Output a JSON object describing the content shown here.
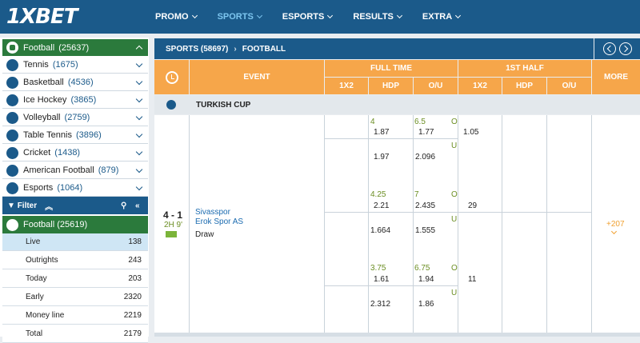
{
  "brand": {
    "logo": "1XBET"
  },
  "nav": [
    {
      "label": "PROMO",
      "active": false
    },
    {
      "label": "SPORTS",
      "active": true
    },
    {
      "label": "ESPORTS",
      "active": false
    },
    {
      "label": "RESULTS",
      "active": false
    },
    {
      "label": "EXTRA",
      "active": false
    }
  ],
  "sidebar": {
    "sports": [
      {
        "name": "Football",
        "count": "(25637)",
        "icon": "football-icon"
      },
      {
        "name": "Tennis",
        "count": "(1675)",
        "icon": "tennis-icon"
      },
      {
        "name": "Basketball",
        "count": "(4536)",
        "icon": "basketball-icon"
      },
      {
        "name": "Ice Hockey",
        "count": "(3865)",
        "icon": "ice-hockey-icon"
      },
      {
        "name": "Volleyball",
        "count": "(2759)",
        "icon": "volleyball-icon"
      },
      {
        "name": "Table Tennis",
        "count": "(3896)",
        "icon": "table-tennis-icon"
      },
      {
        "name": "Cricket",
        "count": "(1438)",
        "icon": "cricket-icon"
      },
      {
        "name": "American Football",
        "count": "(879)",
        "icon": "american-football-icon"
      },
      {
        "name": "Esports",
        "count": "(1064)",
        "icon": "esports-icon"
      }
    ],
    "filter_label": "Filter",
    "section": {
      "name": "Football",
      "count": "(25619)"
    },
    "sub_items": [
      {
        "label": "Live",
        "count": "138"
      },
      {
        "label": "Outrights",
        "count": "243"
      },
      {
        "label": "Today",
        "count": "203"
      },
      {
        "label": "Early",
        "count": "2320"
      },
      {
        "label": "Money line",
        "count": "2219"
      },
      {
        "label": "Total",
        "count": "2179"
      }
    ]
  },
  "main": {
    "breadcrumb": {
      "sports": "SPORTS (58697)",
      "current": "FOOTBALL"
    },
    "table_head": {
      "event": "EVENT",
      "full_time": "FULL TIME",
      "first_half": "1ST HALF",
      "more": "MORE",
      "cols": [
        "1X2",
        "HDP",
        "O/U",
        "1X2",
        "HDP",
        "O/U"
      ]
    },
    "league": "TURKISH CUP",
    "match": {
      "score": "4 - 1",
      "time": "2H 9'",
      "home": "Sivasspor",
      "away": "Erok Spor AS",
      "draw": "Draw",
      "more": "+207"
    },
    "odds": {
      "ft_1x2": [
        "1.87",
        "1.97",
        "2.21",
        "1.664",
        "1.61",
        "2.312"
      ],
      "hdp_lines": [
        "4",
        "4.25",
        "3.75"
      ],
      "ou_lines": [
        "6.5",
        "7",
        "6.75"
      ],
      "ft_ou": [
        "1.77",
        "2.096",
        "2.435",
        "1.555",
        "1.94",
        "1.86"
      ],
      "ou_marks": [
        "O",
        "U",
        "O",
        "U",
        "O",
        "U"
      ],
      "h1_1x2": [
        "1.05",
        "29",
        "11"
      ]
    }
  }
}
